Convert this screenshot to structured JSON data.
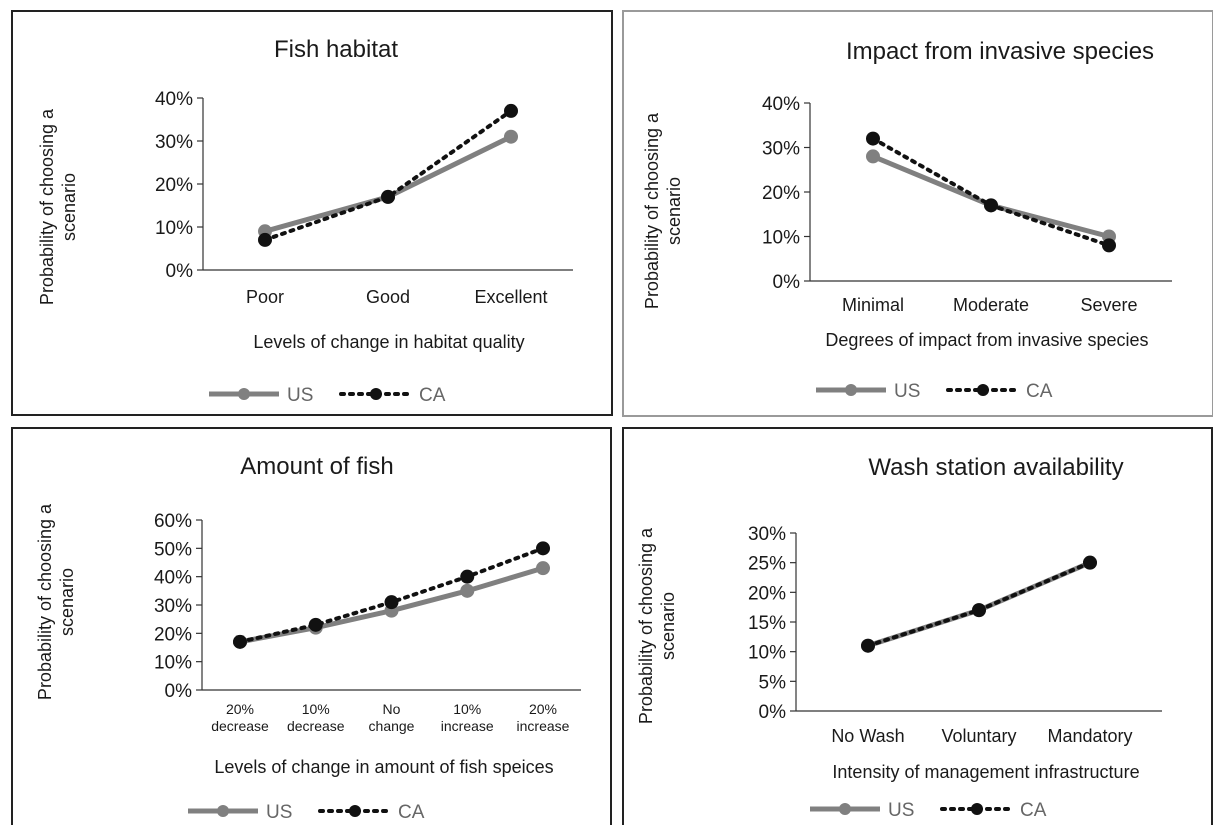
{
  "chart_data": [
    {
      "type": "line",
      "title": "Fish habitat",
      "ylabel": "Probability of choosing a scenario",
      "xlabel": "Levels of change in habitat quality",
      "categories": [
        "Poor",
        "Good",
        "Excellent"
      ],
      "ylim": [
        0,
        40
      ],
      "yticks": [
        "0%",
        "10%",
        "20%",
        "30%",
        "40%"
      ],
      "series": [
        {
          "name": "US",
          "values": [
            9,
            17,
            31
          ],
          "color": "#808080",
          "style": "solid"
        },
        {
          "name": "CA",
          "values": [
            7,
            17,
            37
          ],
          "color": "#111111",
          "style": "dotted"
        }
      ],
      "legend": "bottom"
    },
    {
      "type": "line",
      "title": "Impact from invasive species",
      "ylabel": "Probability of choosing a scenario",
      "xlabel": "Degrees of impact from invasive species",
      "categories": [
        "Minimal",
        "Moderate",
        "Severe"
      ],
      "ylim": [
        0,
        40
      ],
      "yticks": [
        "0%",
        "10%",
        "20%",
        "30%",
        "40%"
      ],
      "series": [
        {
          "name": "US",
          "values": [
            28,
            17,
            10
          ],
          "color": "#808080",
          "style": "solid"
        },
        {
          "name": "CA",
          "values": [
            32,
            17,
            8
          ],
          "color": "#111111",
          "style": "dotted"
        }
      ],
      "legend": "bottom"
    },
    {
      "type": "line",
      "title": "Amount of fish",
      "ylabel": "Probability of choosing a scenario",
      "xlabel": "Levels of change in amount of fish speices",
      "categories": [
        [
          "20%",
          "decrease"
        ],
        [
          "10%",
          "decrease"
        ],
        [
          "No",
          "change"
        ],
        [
          "10%",
          "increase"
        ],
        [
          "20%",
          "increase"
        ]
      ],
      "ylim": [
        0,
        60
      ],
      "yticks": [
        "0%",
        "10%",
        "20%",
        "30%",
        "40%",
        "50%",
        "60%"
      ],
      "series": [
        {
          "name": "US",
          "values": [
            17,
            22,
            28,
            35,
            43
          ],
          "color": "#808080",
          "style": "solid"
        },
        {
          "name": "CA",
          "values": [
            17,
            23,
            31,
            40,
            50
          ],
          "color": "#111111",
          "style": "dotted"
        }
      ],
      "legend": "bottom"
    },
    {
      "type": "line",
      "title": "Wash station availability",
      "ylabel": "Probability of choosing a scenario",
      "xlabel": "Intensity of management infrastructure",
      "categories": [
        "No Wash",
        "Voluntary",
        "Mandatory"
      ],
      "ylim": [
        0,
        30
      ],
      "yticks": [
        "0%",
        "5%",
        "10%",
        "15%",
        "20%",
        "25%",
        "30%"
      ],
      "series": [
        {
          "name": "US",
          "values": [
            11,
            17,
            25
          ],
          "color": "#808080",
          "style": "solid"
        },
        {
          "name": "CA",
          "values": [
            11,
            17,
            25
          ],
          "color": "#111111",
          "style": "dotted"
        }
      ],
      "legend": "bottom"
    }
  ]
}
